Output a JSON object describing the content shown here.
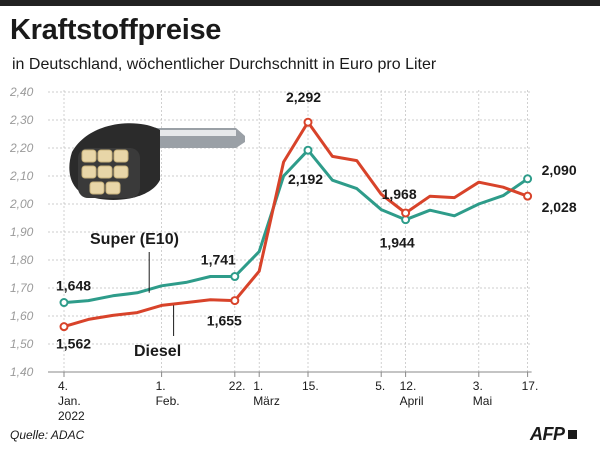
{
  "header": {
    "title": "Kraftstoffpreise",
    "subtitle": "in Deutschland, wöchentlicher Durchschnitt in Euro pro Liter"
  },
  "footer": {
    "source": "Quelle: ADAC",
    "logo": "AFP"
  },
  "colors": {
    "super": "#2e9c8a",
    "diesel": "#d8432a",
    "grid": "#bdbdbd",
    "axis": "#888888"
  },
  "chart_data": {
    "type": "line",
    "title": "Kraftstoffpreise",
    "subtitle": "in Deutschland, wöchentlicher Durchschnitt in Euro pro Liter",
    "ylim": [
      1.4,
      2.4
    ],
    "grid": true,
    "y_ticks": [
      "1,40",
      "1,50",
      "1,60",
      "1,70",
      "1,80",
      "1,90",
      "2,00",
      "2,10",
      "2,20",
      "2,30",
      "2,40"
    ],
    "x_ticks": [
      {
        "i": 0,
        "line1": "4.",
        "line2": "Jan.",
        "line3": "2022"
      },
      {
        "i": 4,
        "line1": "1.",
        "line2": "Feb.",
        "line3": ""
      },
      {
        "i": 7,
        "line1": "22.",
        "line2": "",
        "line3": ""
      },
      {
        "i": 8,
        "line1": "1.",
        "line2": "März",
        "line3": ""
      },
      {
        "i": 10,
        "line1": "15.",
        "line2": "",
        "line3": ""
      },
      {
        "i": 13,
        "line1": "5.",
        "line2": "",
        "line3": ""
      },
      {
        "i": 14,
        "line1": "12.",
        "line2": "April",
        "line3": ""
      },
      {
        "i": 17,
        "line1": "3.",
        "line2": "Mai",
        "line3": ""
      },
      {
        "i": 19,
        "line1": "17.",
        "line2": "",
        "line3": ""
      }
    ],
    "series": [
      {
        "name": "Super (E10)",
        "color": "#2e9c8a",
        "values": [
          1.648,
          1.655,
          1.672,
          1.683,
          1.708,
          1.72,
          1.741,
          1.741,
          1.83,
          2.1,
          2.192,
          2.085,
          2.055,
          1.98,
          1.944,
          1.978,
          1.958,
          2.0,
          2.03,
          2.09
        ]
      },
      {
        "name": "Diesel",
        "color": "#d8432a",
        "values": [
          1.562,
          1.588,
          1.602,
          1.612,
          1.638,
          1.648,
          1.658,
          1.655,
          1.76,
          2.15,
          2.292,
          2.17,
          2.155,
          2.035,
          1.968,
          2.028,
          2.023,
          2.078,
          2.06,
          2.028
        ]
      }
    ],
    "annotations": [
      {
        "series": 0,
        "i": 0,
        "text": "1,648"
      },
      {
        "series": 1,
        "i": 0,
        "text": "1,562"
      },
      {
        "series": 0,
        "i": 7,
        "text": "1,741"
      },
      {
        "series": 1,
        "i": 7,
        "text": "1,655"
      },
      {
        "series": 1,
        "i": 10,
        "text": "2,292"
      },
      {
        "series": 0,
        "i": 10,
        "text": "2,192"
      },
      {
        "series": 1,
        "i": 14,
        "text": "1,968"
      },
      {
        "series": 0,
        "i": 14,
        "text": "1,944"
      },
      {
        "series": 0,
        "i": 19,
        "text": "2,090"
      },
      {
        "series": 1,
        "i": 19,
        "text": "2,028"
      }
    ]
  }
}
